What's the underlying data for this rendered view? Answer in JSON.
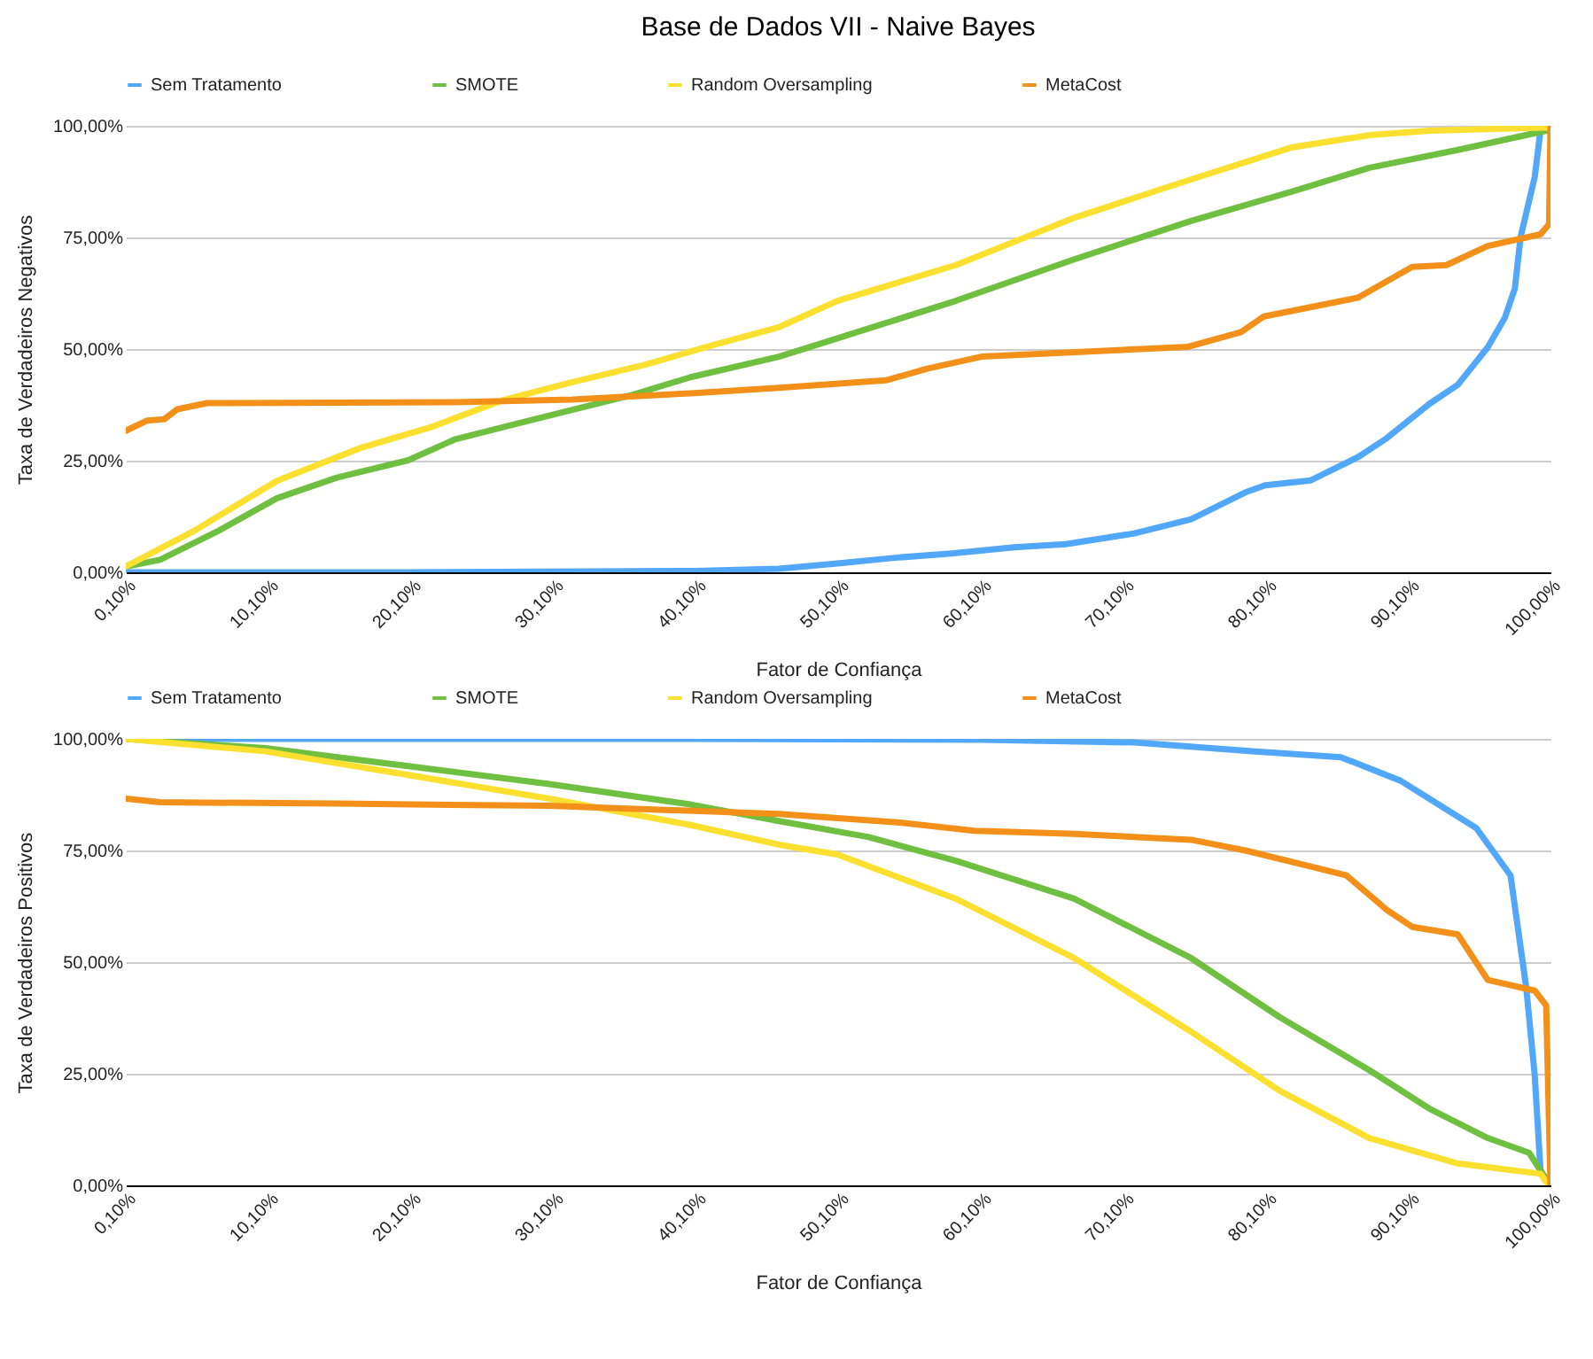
{
  "chart_data": [
    {
      "type": "line",
      "title": "Base de Dados VII - Naive Bayes",
      "xlabel": "Fator de Confiança",
      "ylabel": "Taxa de Verdadeiros Negativos",
      "xlim": [
        0.1,
        100
      ],
      "ylim": [
        0,
        100
      ],
      "xticks": [
        {
          "value": 0.1,
          "label": "0,10%"
        },
        {
          "value": 10.1,
          "label": "10,10%"
        },
        {
          "value": 20.1,
          "label": "20,10%"
        },
        {
          "value": 30.1,
          "label": "30,10%"
        },
        {
          "value": 40.1,
          "label": "40,10%"
        },
        {
          "value": 50.1,
          "label": "50,10%"
        },
        {
          "value": 60.1,
          "label": "60,10%"
        },
        {
          "value": 70.1,
          "label": "70,10%"
        },
        {
          "value": 80.1,
          "label": "80,10%"
        },
        {
          "value": 90.1,
          "label": "90,10%"
        },
        {
          "value": 100,
          "label": "100,00%"
        }
      ],
      "yticks": [
        {
          "value": 0,
          "label": "0,00%"
        },
        {
          "value": 25,
          "label": "25,00%"
        },
        {
          "value": 50,
          "label": "50,00%"
        },
        {
          "value": 75,
          "label": "75,00%"
        },
        {
          "value": 100,
          "label": "100,00%"
        }
      ],
      "grid": "y",
      "legend": "top",
      "line_style": "solid",
      "series": [
        {
          "name": "Sem Tratamento",
          "color": "#51a7f9",
          "x": [
            0.1,
            20,
            40,
            45.9,
            50,
            54.2,
            58,
            62.4,
            66,
            70.8,
            74.8,
            78.6,
            80,
            83.2,
            86.5,
            88.5,
            91.5,
            93.5,
            95.6,
            96.8,
            97.5,
            97.9,
            98.9,
            99.3,
            100
          ],
          "values": [
            0,
            0,
            0.3,
            0.8,
            2,
            3.3,
            4.2,
            5.6,
            6.3,
            8.7,
            11.9,
            17.9,
            19.5,
            20.6,
            25.8,
            30,
            37.7,
            42,
            50.4,
            57,
            63.5,
            75,
            88.6,
            99,
            100
          ]
        },
        {
          "name": "SMOTE",
          "color": "#6fbf40",
          "x": [
            0.1,
            2.5,
            6.6,
            10.7,
            14.9,
            19.9,
            23.2,
            27.3,
            31.4,
            35.6,
            39.7,
            45.9,
            50,
            58.3,
            66.6,
            74.8,
            81.9,
            87.3,
            93.5,
            99.7,
            100
          ],
          "values": [
            1.3,
            2.8,
            9.3,
            16.6,
            21.2,
            25.1,
            29.8,
            33.1,
            36.4,
            39.7,
            43.7,
            48.3,
            52.4,
            60.8,
            70.1,
            78.7,
            85.3,
            90.6,
            94.6,
            98.9,
            100
          ]
        },
        {
          "name": "Random Oversampling",
          "color": "#fbe02f",
          "x": [
            0.1,
            4.9,
            10.7,
            16.5,
            21.5,
            26.5,
            31.4,
            36.4,
            41.3,
            45.9,
            50,
            58.3,
            66.6,
            74.8,
            81.9,
            87.3,
            91.5,
            99.7,
            100
          ],
          "values": [
            1.3,
            9.3,
            20.5,
            27.8,
            32.5,
            38.5,
            42.6,
            46.4,
            50.9,
            54.9,
            60.8,
            68.8,
            79.4,
            88,
            95.2,
            97.9,
            98.9,
            99.6,
            100
          ]
        },
        {
          "name": "MetaCost",
          "color": "#f39019",
          "x": [
            0.1,
            1.6,
            2.8,
            3.7,
            5.8,
            23.2,
            31.4,
            39.7,
            45.9,
            53.4,
            56.3,
            60.1,
            66.7,
            74.6,
            78.3,
            79.9,
            86.5,
            90.3,
            92.7,
            95.6,
            99.3,
            99.9,
            100
          ],
          "values": [
            31.7,
            34,
            34.3,
            36.5,
            37.9,
            38.1,
            38.7,
            40.1,
            41.3,
            43,
            45.6,
            48.3,
            49.3,
            50.5,
            53.8,
            57.3,
            61.5,
            68.4,
            68.8,
            73.1,
            75.7,
            78,
            100
          ]
        }
      ]
    },
    {
      "type": "line",
      "xlabel": "Fator de Confiança",
      "ylabel": "Taxa de Verdadeiros Positivos",
      "xlim": [
        0.1,
        100
      ],
      "ylim": [
        0,
        100
      ],
      "xticks": [
        {
          "value": 0.1,
          "label": "0,10%"
        },
        {
          "value": 10.1,
          "label": "10,10%"
        },
        {
          "value": 20.1,
          "label": "20,10%"
        },
        {
          "value": 30.1,
          "label": "30,10%"
        },
        {
          "value": 40.1,
          "label": "40,10%"
        },
        {
          "value": 50.1,
          "label": "50,10%"
        },
        {
          "value": 60.1,
          "label": "60,10%"
        },
        {
          "value": 70.1,
          "label": "70,10%"
        },
        {
          "value": 80.1,
          "label": "80,10%"
        },
        {
          "value": 90.1,
          "label": "90,10%"
        },
        {
          "value": 100,
          "label": "100,00%"
        }
      ],
      "yticks": [
        {
          "value": 0,
          "label": "0,00%"
        },
        {
          "value": 25,
          "label": "25,00%"
        },
        {
          "value": 50,
          "label": "50,00%"
        },
        {
          "value": 75,
          "label": "75,00%"
        },
        {
          "value": 100,
          "label": "100,00%"
        }
      ],
      "grid": "y",
      "legend": "top",
      "line_style": "solid",
      "series": [
        {
          "name": "Sem Tratamento",
          "color": "#51a7f9",
          "x": [
            0.1,
            40,
            60,
            70.8,
            79.1,
            85.3,
            89.5,
            91.5,
            94.8,
            97.2,
            98.3,
            98.9,
            99.3,
            100
          ],
          "values": [
            100,
            100,
            99.8,
            99.2,
            97.2,
            95.9,
            90.6,
            86.6,
            80,
            69.4,
            44.3,
            24.5,
            3.3,
            0
          ]
        },
        {
          "name": "SMOTE",
          "color": "#6fbf40",
          "x": [
            0.1,
            9.9,
            19.9,
            29.8,
            39.7,
            45.9,
            52.2,
            58.3,
            66.6,
            74.8,
            81,
            87.3,
            91.5,
            95.6,
            98.5,
            99.7,
            100
          ],
          "values": [
            100,
            97.9,
            93.9,
            89.9,
            85.3,
            81.6,
            78,
            72.7,
            64.2,
            50.9,
            37.7,
            25.8,
            17.2,
            10.6,
            7.3,
            1.3,
            0
          ]
        },
        {
          "name": "Random Oversampling",
          "color": "#fbe02f",
          "x": [
            0.1,
            9.9,
            19.9,
            29.8,
            39.7,
            45.9,
            50,
            58.3,
            66.6,
            74.8,
            81,
            87.3,
            93.5,
            99.3,
            99.7,
            100
          ],
          "values": [
            100,
            97.2,
            91.9,
            86.6,
            80.7,
            76.3,
            74.1,
            64.2,
            50.9,
            34.4,
            21.2,
            10.6,
            4.9,
            2.6,
            0.8,
            0
          ]
        },
        {
          "name": "MetaCost",
          "color": "#f39019",
          "x": [
            0.1,
            2.5,
            14.9,
            29.8,
            45.9,
            54.2,
            59.6,
            66.6,
            74.8,
            78.6,
            83.2,
            85.7,
            88.6,
            90.3,
            93.5,
            95.6,
            98.9,
            99.7,
            100
          ],
          "values": [
            86.6,
            85.8,
            85.5,
            85,
            83.2,
            81.3,
            79.4,
            78.7,
            77.4,
            75,
            71.4,
            69.4,
            61.5,
            57.9,
            56.2,
            46,
            43.6,
            40.3,
            0
          ]
        }
      ]
    }
  ]
}
